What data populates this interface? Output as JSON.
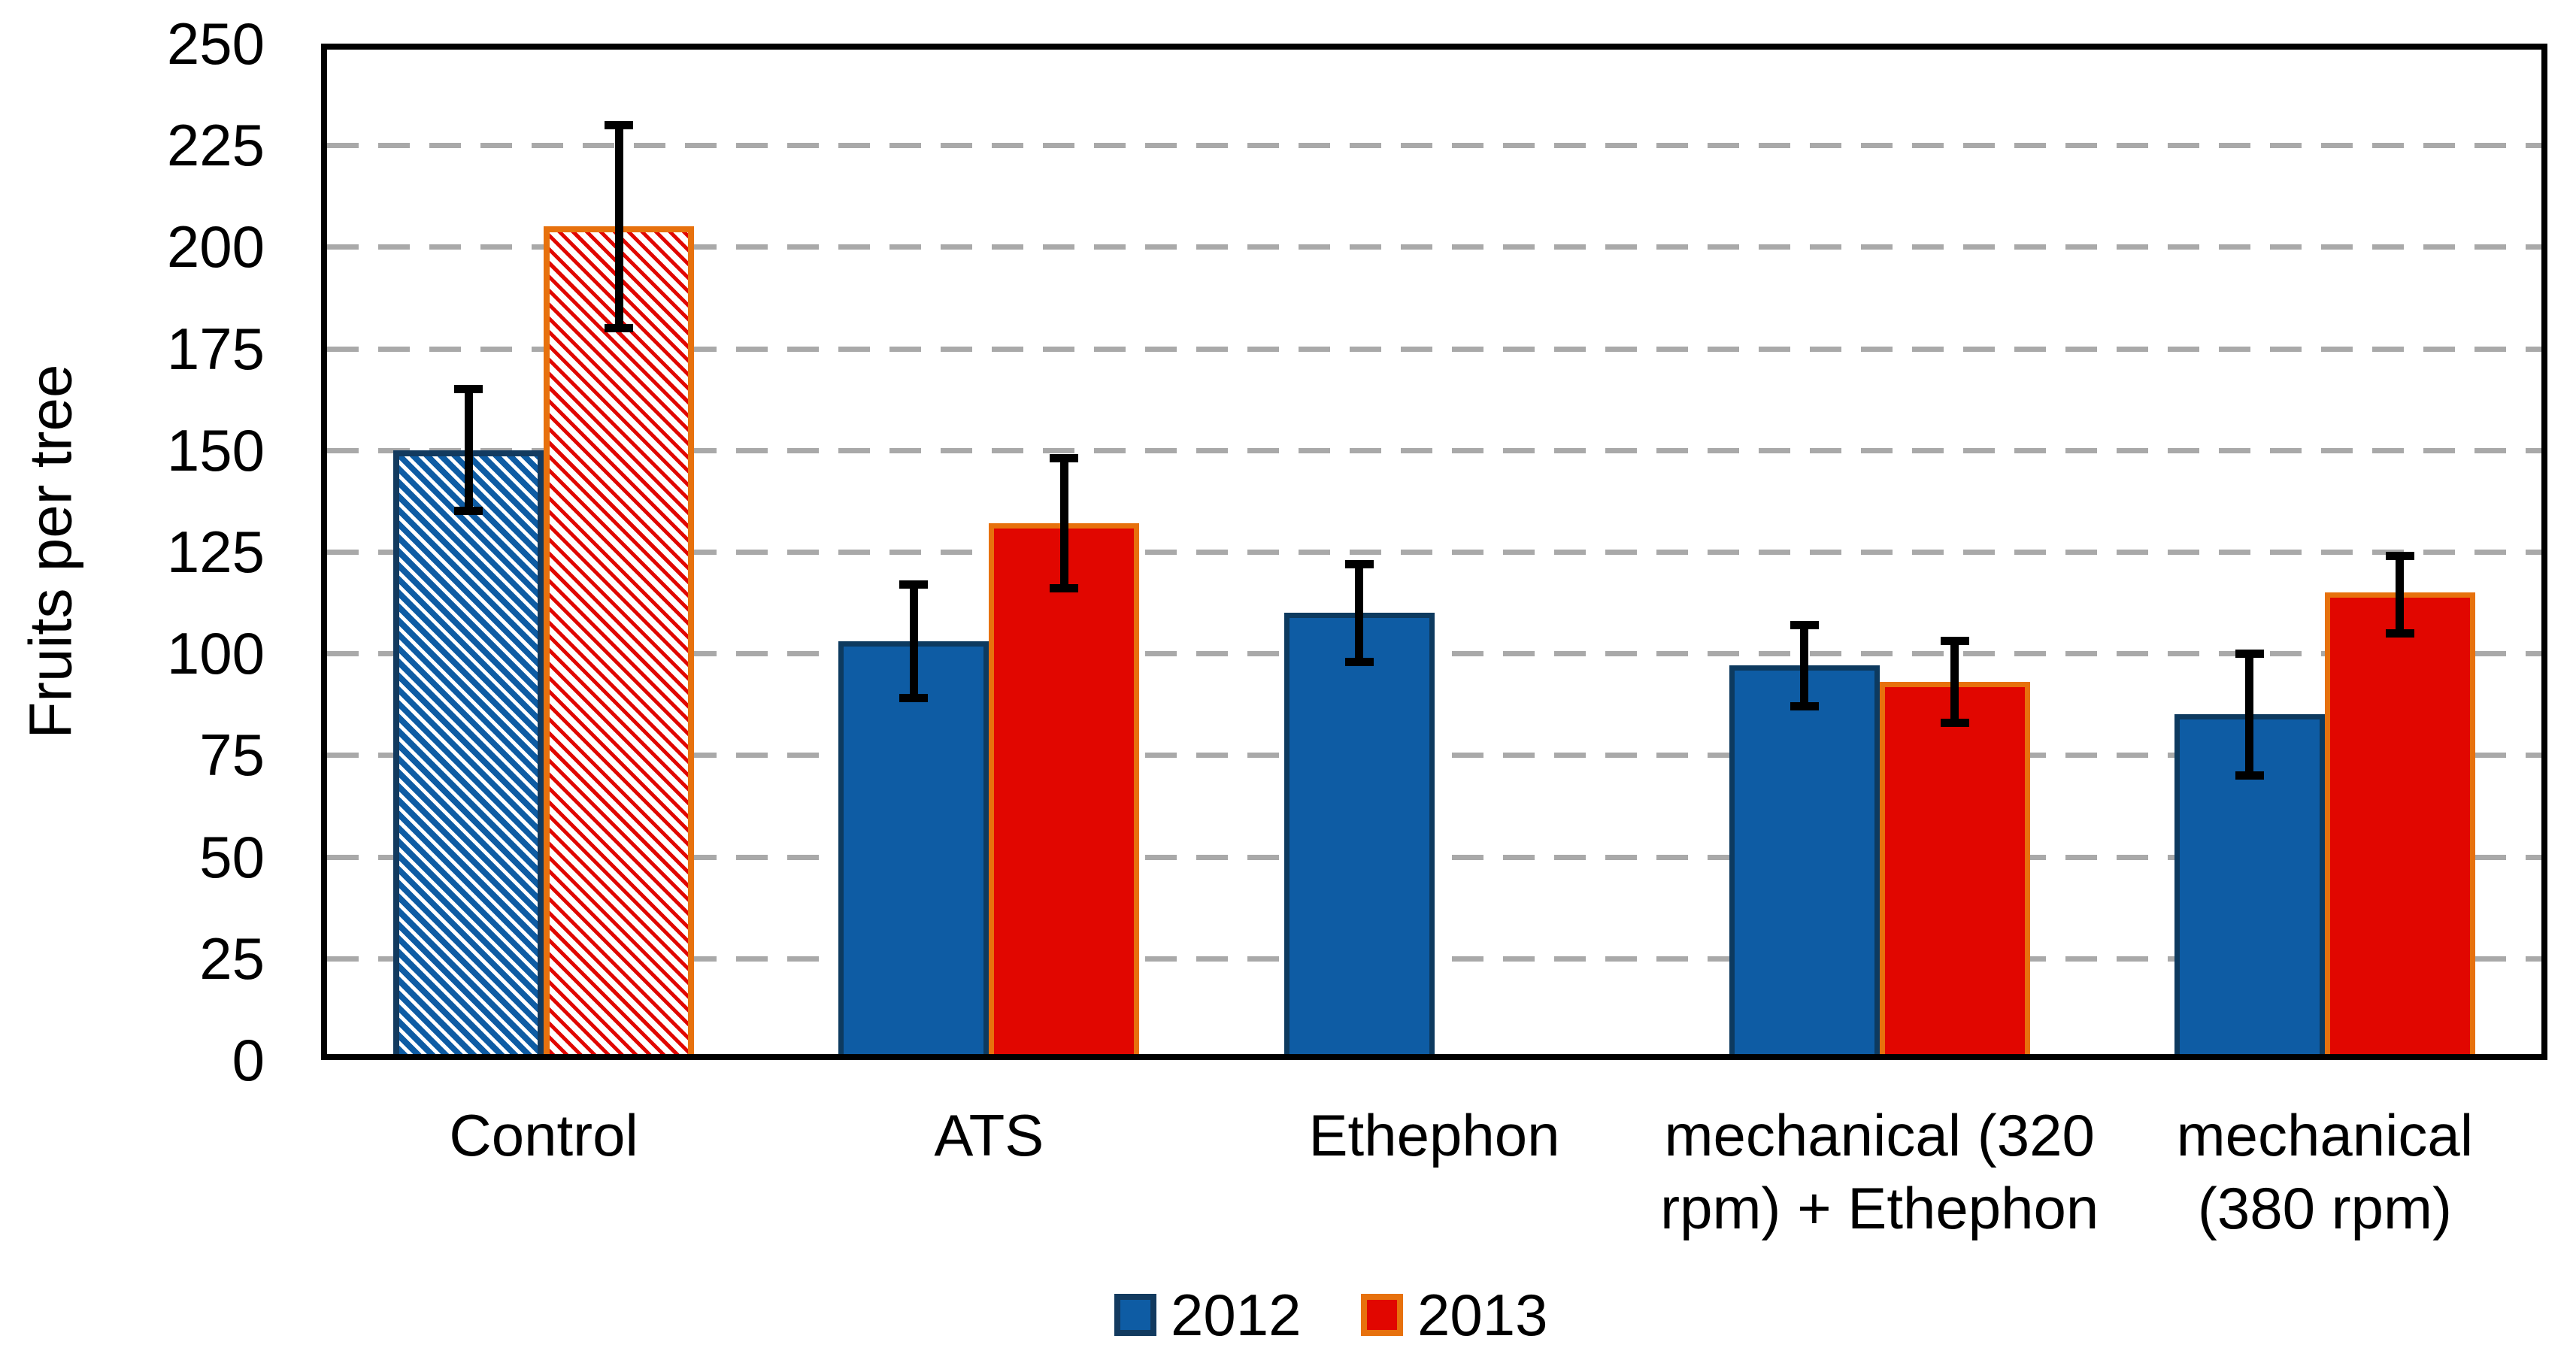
{
  "chart_data": {
    "type": "bar",
    "title": "",
    "ylabel": "Fruits per tree",
    "xlabel": "",
    "ylim": [
      0,
      250
    ],
    "ytick_step": 25,
    "yticks": [
      0,
      25,
      50,
      75,
      100,
      125,
      150,
      175,
      200,
      225,
      250
    ],
    "grid": "horizontal dashed gridlines at every 25 units",
    "gridline_color": "#A9A9A9",
    "legend_position": "bottom-center",
    "categories": [
      "Control",
      "ATS",
      "Ethephon",
      "mechanical (320 rpm) + Ethephon",
      "mechanical (380 rpm)"
    ],
    "category_lines": [
      [
        "Control"
      ],
      [
        "ATS"
      ],
      [
        "Ethephon"
      ],
      [
        "mechanical (320",
        "rpm) + Ethephon"
      ],
      [
        "mechanical",
        "(380 rpm)"
      ]
    ],
    "series": [
      {
        "name": "2012",
        "fill": "#0E5CA4",
        "border": "#0D3A5F",
        "values": [
          150,
          103,
          110,
          97,
          85
        ],
        "error_high": [
          165,
          117,
          122,
          107,
          100
        ],
        "error_low": [
          135,
          89,
          98,
          87,
          70
        ],
        "pattern": [
          "diagonal-hatch",
          "solid",
          "solid",
          "solid",
          "solid"
        ]
      },
      {
        "name": "2013",
        "fill": "#E10600",
        "border": "#E7710D",
        "values": [
          205,
          132,
          null,
          93,
          115
        ],
        "error_high": [
          230,
          148,
          null,
          103,
          124
        ],
        "error_low": [
          180,
          116,
          null,
          83,
          105
        ],
        "pattern": [
          "diagonal-hatch",
          "solid",
          null,
          "solid",
          "solid"
        ]
      }
    ],
    "error_bar_color": "#000000",
    "axis_color": "#000000"
  }
}
